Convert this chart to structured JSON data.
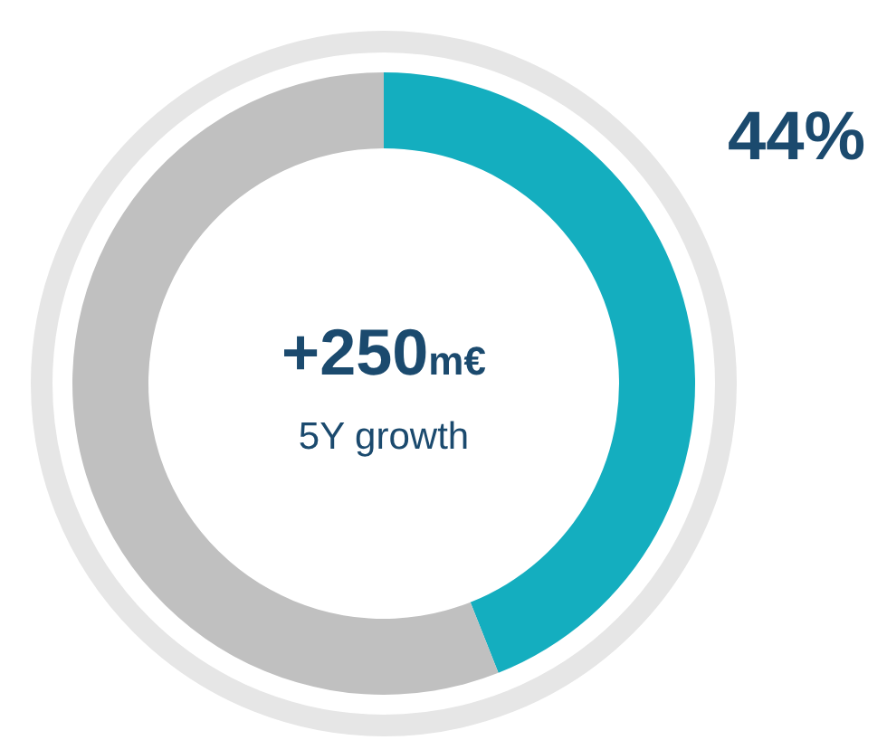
{
  "chart_data": {
    "type": "donut",
    "categories": [
      null,
      null
    ],
    "values": [
      44,
      56
    ],
    "colors": [
      "#14aebf",
      "#c0c0c0"
    ],
    "value_labels": [
      "44%",
      null
    ],
    "annotations": [
      "+250m€",
      "5Y growth"
    ]
  }
}
